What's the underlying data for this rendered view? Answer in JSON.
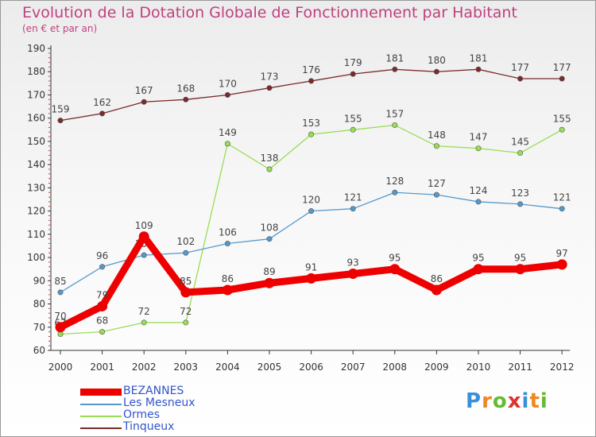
{
  "title": "Evolution de la Dotation Globale de Fonctionnement par Habitant",
  "subtitle": "(en € et par an)",
  "chart_data": {
    "type": "line",
    "x": [
      "2000",
      "2001",
      "2002",
      "2003",
      "2004",
      "2005",
      "2006",
      "2007",
      "2008",
      "2009",
      "2010",
      "2011",
      "2012"
    ],
    "ylim": [
      60,
      190
    ],
    "y_ticks": [
      60,
      70,
      80,
      90,
      100,
      110,
      120,
      130,
      140,
      150,
      160,
      170,
      180,
      190
    ],
    "grid": false,
    "legend_position": "bottom-left",
    "series": [
      {
        "name": "Tinqueux",
        "color": "#7a2a2a",
        "emphasis": false,
        "values": [
          159,
          162,
          167,
          168,
          170,
          173,
          176,
          179,
          181,
          180,
          181,
          177,
          177
        ]
      },
      {
        "name": "Ormes",
        "color": "#99dd55",
        "emphasis": false,
        "values": [
          67,
          68,
          72,
          72,
          149,
          138,
          153,
          155,
          157,
          148,
          147,
          145,
          155
        ]
      },
      {
        "name": "Les Mesneux",
        "color": "#5599cc",
        "emphasis": false,
        "values": [
          85,
          96,
          101,
          102,
          106,
          108,
          120,
          121,
          128,
          127,
          124,
          123,
          121
        ]
      },
      {
        "name": "BEZANNES",
        "color": "#ee0000",
        "emphasis": true,
        "values": [
          70,
          79,
          109,
          85,
          86,
          89,
          91,
          93,
          95,
          86,
          95,
          95,
          97
        ]
      }
    ],
    "legend_order": [
      "BEZANNES",
      "Les Mesneux",
      "Ormes",
      "Tinqueux"
    ]
  },
  "logo": {
    "text": "Proxiti",
    "letter_colors": [
      "#3a8fd8",
      "#ee8822",
      "#66bb33",
      "#dd3333",
      "#3a8fd8",
      "#ee8822",
      "#66bb33"
    ]
  }
}
